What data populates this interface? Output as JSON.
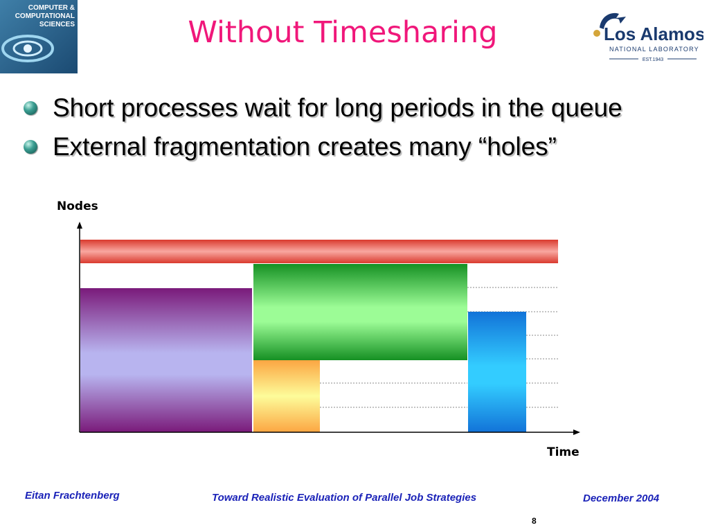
{
  "slide": {
    "title": "Without Timesharing",
    "bullets": [
      "Short processes wait for long periods in the queue",
      "External fragmentation creates many “holes”"
    ]
  },
  "logos": {
    "ccs": {
      "line1": "COMPUTER &",
      "line2": "COMPUTATIONAL",
      "line3": "SCIENCES",
      "icon": "ccs-swirl-logo"
    },
    "lanl": {
      "name": "Los Alamos",
      "sub": "NATIONAL LABORATORY",
      "est": "EST.1943",
      "icon": "lanl-arrow-logo"
    }
  },
  "diagram": {
    "y_axis_label": "Nodes",
    "x_axis_label": "Time",
    "colors": {
      "red_job": "#e8483c",
      "purple_job": "#7a1a7a",
      "green_job": "#159023",
      "orange_job": "#fca642",
      "blue_job": "#1593e8"
    }
  },
  "footer": {
    "author": "Eitan Frachtenberg",
    "talk": "Toward Realistic Evaluation of Parallel Job Strategies",
    "date": "December 2004",
    "page": "8"
  }
}
